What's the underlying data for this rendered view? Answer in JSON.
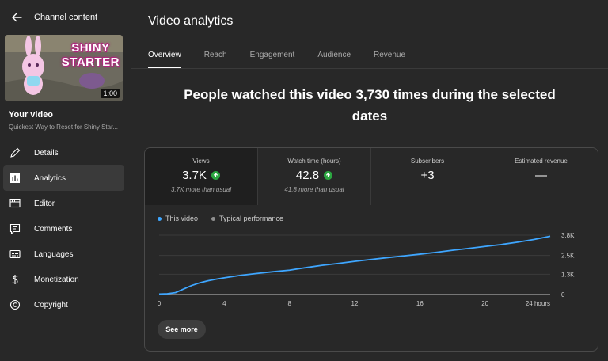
{
  "sidebar": {
    "title": "Channel content",
    "thumbnail": {
      "caption_line1": "SHINY",
      "caption_line2": "STARTER",
      "duration": "1:00"
    },
    "video_label": "Your video",
    "video_title": "Quickest Way to Reset for Shiny Star...",
    "items": [
      {
        "label": "Details",
        "icon": "pencil-icon"
      },
      {
        "label": "Analytics",
        "icon": "analytics-icon",
        "active": true
      },
      {
        "label": "Editor",
        "icon": "film-icon"
      },
      {
        "label": "Comments",
        "icon": "comment-icon"
      },
      {
        "label": "Languages",
        "icon": "subtitles-icon"
      },
      {
        "label": "Monetization",
        "icon": "dollar-icon"
      },
      {
        "label": "Copyright",
        "icon": "copyright-icon"
      }
    ]
  },
  "header": {
    "title": "Video analytics"
  },
  "tabs": [
    {
      "label": "Overview",
      "active": true
    },
    {
      "label": "Reach"
    },
    {
      "label": "Engagement"
    },
    {
      "label": "Audience"
    },
    {
      "label": "Revenue"
    }
  ],
  "headline": "People watched this video 3,730 times during the selected dates",
  "metrics": [
    {
      "label": "Views",
      "value": "3.7K",
      "note": "3.7K more than usual"
    },
    {
      "label": "Watch time (hours)",
      "value": "42.8",
      "note": "41.8 more than usual"
    },
    {
      "label": "Subscribers",
      "value": "+3"
    },
    {
      "label": "Estimated revenue",
      "value": "—"
    }
  ],
  "see_more": "See more",
  "colors": {
    "this_video": "#3ea6ff",
    "typical": "#909090",
    "up": "#2ba640"
  },
  "chart_data": {
    "type": "line",
    "legend": [
      "This video",
      "Typical performance"
    ],
    "x_tick_labels": [
      "0",
      "4",
      "8",
      "12",
      "16",
      "20",
      "24 hours"
    ],
    "y_tick_labels": [
      "0",
      "1.3K",
      "2.5K",
      "3.8K"
    ],
    "x_range": [
      0,
      24
    ],
    "y_range": [
      0,
      3800
    ],
    "grid": true,
    "legend_position": "top-left",
    "series": [
      {
        "name": "This video",
        "x": [
          0,
          0.5,
          1,
          1.5,
          2,
          2.5,
          3,
          3.5,
          4,
          5,
          6,
          7,
          8,
          9,
          10,
          11,
          12,
          13,
          14,
          15,
          16,
          17,
          18,
          19,
          20,
          21,
          22,
          23,
          24
        ],
        "values": [
          30,
          50,
          120,
          350,
          580,
          750,
          880,
          980,
          1070,
          1230,
          1350,
          1460,
          1560,
          1720,
          1870,
          1990,
          2120,
          2240,
          2360,
          2470,
          2580,
          2700,
          2830,
          2950,
          3080,
          3200,
          3350,
          3520,
          3730
        ]
      },
      {
        "name": "Typical performance",
        "x": [
          0,
          24
        ],
        "values": [
          0,
          0
        ]
      }
    ]
  }
}
